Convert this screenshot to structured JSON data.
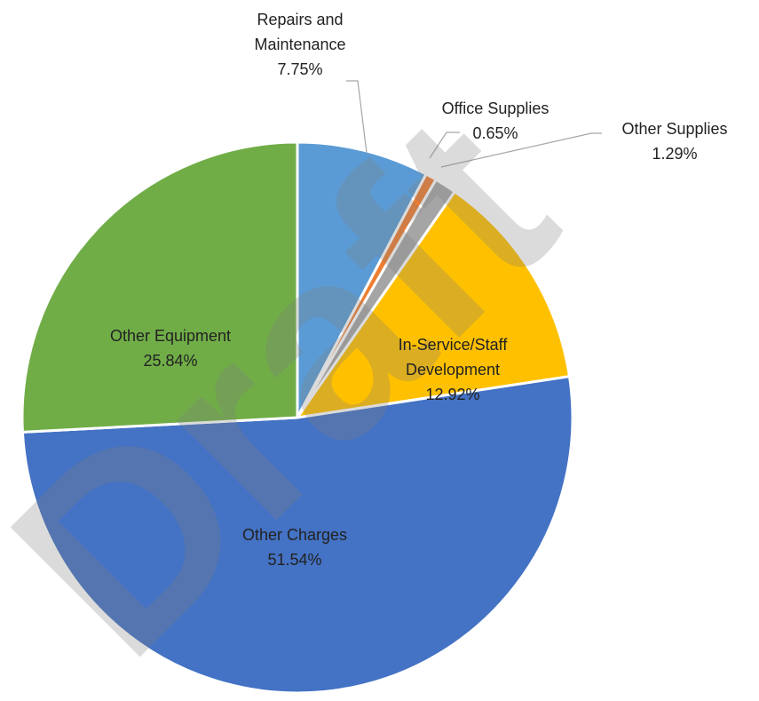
{
  "chart_data": {
    "type": "pie",
    "categories": [
      "Repairs and Maintenance",
      "Office Supplies",
      "Other Supplies",
      "In-Service/Staff Development",
      "Other Charges",
      "Other Equipment"
    ],
    "values": [
      7.75,
      0.65,
      1.29,
      12.92,
      51.54,
      25.84
    ],
    "value_labels": [
      "7.75%",
      "0.65%",
      "1.29%",
      "12.92%",
      "51.54%",
      "25.84%"
    ],
    "colors": [
      "#5b9bd5",
      "#ed7d31",
      "#a5a5a5",
      "#ffc000",
      "#4472c4",
      "#70ad47"
    ],
    "watermark": "Draft"
  }
}
